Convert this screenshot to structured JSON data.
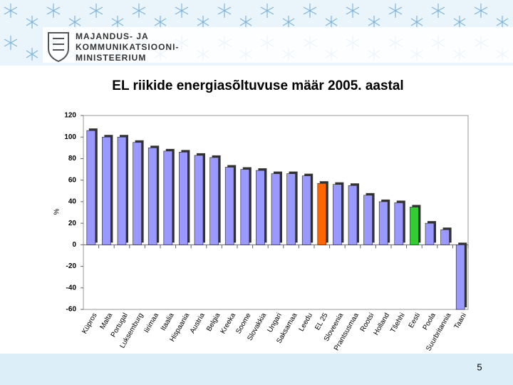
{
  "header": {
    "lines": [
      "MAJANDUS- JA",
      "KOMMUNIKATSIOONI-",
      "MINISTEERIUM"
    ]
  },
  "page_number": "5",
  "chart_data": {
    "type": "bar",
    "title": "EL riikide energiasõltuvuse määr 2005. aastal",
    "y_label": "%",
    "categories": [
      "Küpros",
      "Malta",
      "Portugal",
      "Luksemburg",
      "Iirimaa",
      "Itaalia",
      "Hispaania",
      "Austria",
      "Belgia",
      "Kreeka",
      "Soome",
      "Slovakkia",
      "Ungari",
      "Saksamaa",
      "Leedu",
      "EL 25",
      "Sloveenia",
      "Prantsusmaa",
      "Rootsi",
      "Holland",
      "Tšehhi",
      "Eesti",
      "Poola",
      "Suurbritannia",
      "Taani"
    ],
    "values": [
      106,
      100,
      100,
      95,
      90,
      87,
      86,
      83,
      81,
      72,
      70,
      69,
      66,
      66,
      64,
      57,
      56,
      55,
      46,
      40,
      39,
      35,
      20,
      14,
      -60
    ],
    "color": "#9999ff",
    "highlight_colors": {
      "EL 25": "#ff6600",
      "Eesti": "#33cc33"
    },
    "ylim": [
      -60,
      120
    ],
    "yticks": [
      -60,
      -40,
      -20,
      0,
      20,
      40,
      60,
      80,
      100,
      120
    ]
  }
}
